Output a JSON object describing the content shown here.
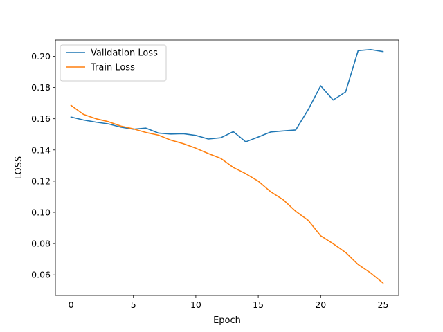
{
  "chart_data": {
    "type": "line",
    "title": "",
    "xlabel": "Epoch",
    "ylabel": "LOSS",
    "xlim": [
      -1.25,
      26.25
    ],
    "ylim": [
      0.0468,
      0.2104
    ],
    "xticks": [
      0,
      5,
      10,
      15,
      20,
      25
    ],
    "yticks": [
      0.06,
      0.08,
      0.1,
      0.12,
      0.14,
      0.16,
      0.18,
      0.2
    ],
    "ytick_labels": [
      "0.06",
      "0.08",
      "0.10",
      "0.12",
      "0.14",
      "0.16",
      "0.18",
      "0.20"
    ],
    "grid": false,
    "legend": "top-left",
    "x": [
      0,
      1,
      2,
      3,
      4,
      5,
      6,
      7,
      8,
      9,
      10,
      11,
      12,
      13,
      14,
      15,
      16,
      17,
      18,
      19,
      20,
      21,
      22,
      23,
      24,
      25
    ],
    "series": [
      {
        "name": "Validation Loss",
        "color": "#1f77b4",
        "values": [
          0.1611,
          0.1592,
          0.1578,
          0.1567,
          0.1546,
          0.1533,
          0.154,
          0.1508,
          0.1502,
          0.1504,
          0.1493,
          0.147,
          0.1478,
          0.1517,
          0.1452,
          0.1483,
          0.1515,
          0.1522,
          0.1528,
          0.1658,
          0.1811,
          0.172,
          0.1772,
          0.2036,
          0.2043,
          0.203
        ]
      },
      {
        "name": "Train Loss",
        "color": "#ff7f0e",
        "values": [
          0.1686,
          0.1628,
          0.16,
          0.1581,
          0.1553,
          0.1535,
          0.1512,
          0.1495,
          0.1463,
          0.144,
          0.1411,
          0.1377,
          0.1346,
          0.1288,
          0.1248,
          0.12,
          0.1132,
          0.1081,
          0.1007,
          0.0949,
          0.085,
          0.0799,
          0.0743,
          0.0666,
          0.0612,
          0.0547
        ]
      }
    ]
  }
}
